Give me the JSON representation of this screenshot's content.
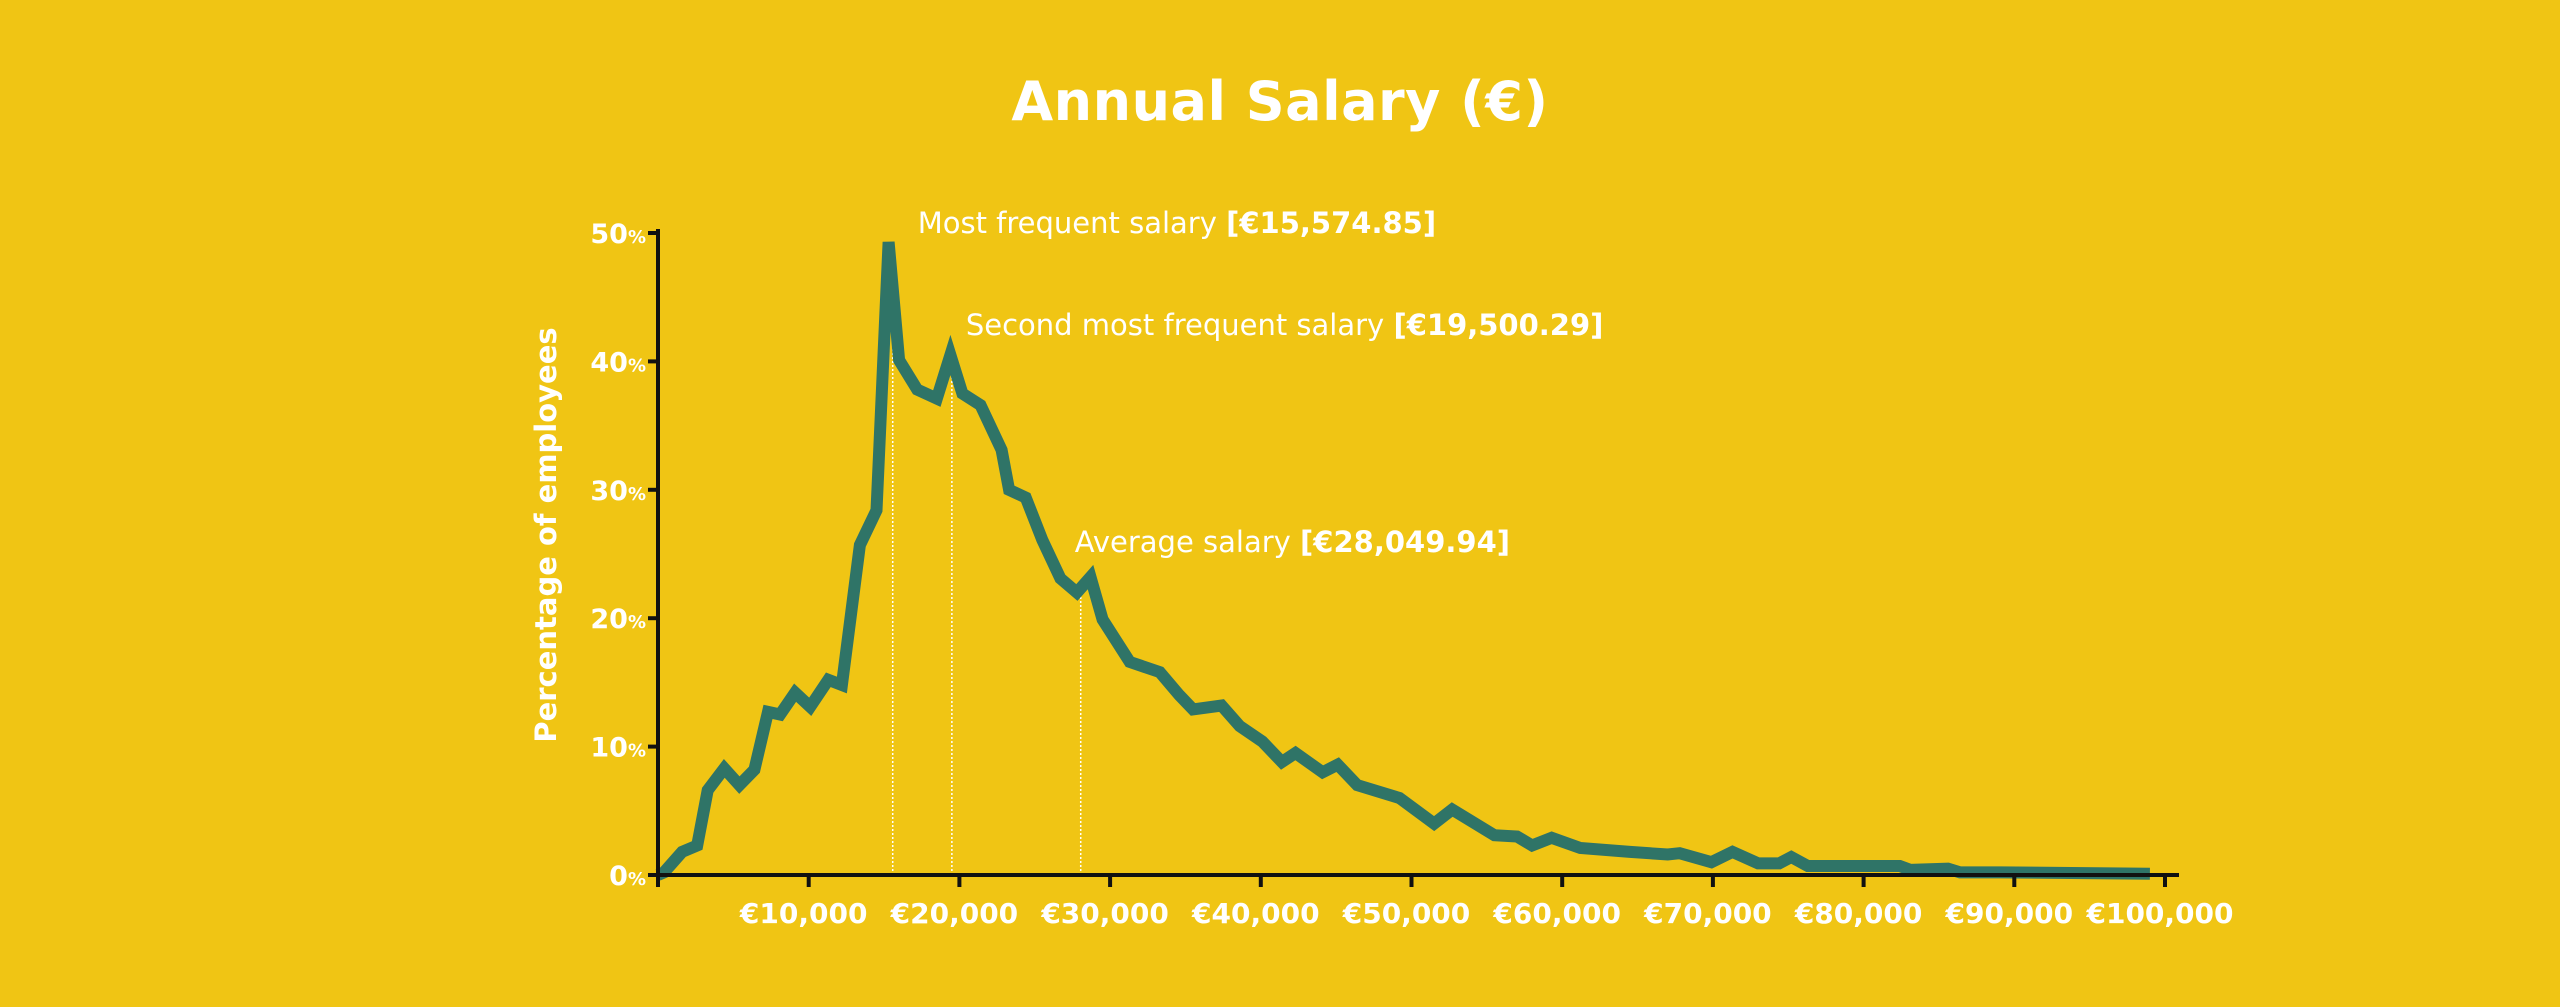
{
  "colors": {
    "background": "#F0C514",
    "line": "#2F7467",
    "axis": "#111111",
    "text": "#ffffff"
  },
  "chart_data": {
    "type": "line",
    "title": "Annual Salary (€)",
    "xlabel": "",
    "ylabel": "Percentage of employees",
    "xlim": [
      0,
      100000
    ],
    "ylim": [
      0,
      50
    ],
    "grid": false,
    "legend": "none",
    "x_ticks": [
      {
        "value": 10000,
        "label": "€10,000"
      },
      {
        "value": 20000,
        "label": "€20,000"
      },
      {
        "value": 30000,
        "label": "€30,000"
      },
      {
        "value": 40000,
        "label": "€40,000"
      },
      {
        "value": 50000,
        "label": "€50,000"
      },
      {
        "value": 60000,
        "label": "€60,000"
      },
      {
        "value": 70000,
        "label": "€70,000"
      },
      {
        "value": 80000,
        "label": "€80,000"
      },
      {
        "value": 90000,
        "label": "€90,000"
      },
      {
        "value": 100000,
        "label": "€100,000"
      }
    ],
    "y_ticks": [
      {
        "value": 0,
        "label": "0",
        "suffix": "%"
      },
      {
        "value": 10,
        "label": "10",
        "suffix": "%"
      },
      {
        "value": 20,
        "label": "20",
        "suffix": "%"
      },
      {
        "value": 30,
        "label": "30",
        "suffix": "%"
      },
      {
        "value": 40,
        "label": "40",
        "suffix": "%"
      },
      {
        "value": 50,
        "label": "50",
        "suffix": "%"
      }
    ],
    "series": [
      {
        "name": "Percentage of employees",
        "x": [
          400,
          1600,
          2600,
          3300,
          4400,
          5400,
          6400,
          7300,
          8100,
          9100,
          10100,
          11300,
          12200,
          13400,
          14500,
          15300,
          16000,
          17200,
          18500,
          19400,
          20200,
          21400,
          22800,
          23300,
          24400,
          25500,
          26700,
          27800,
          28700,
          29500,
          31300,
          33300,
          34600,
          35500,
          37400,
          38600,
          40100,
          41400,
          42300,
          44100,
          45100,
          46400,
          49200,
          51500,
          52700,
          55500,
          57000,
          58000,
          59300,
          61200,
          64500,
          67000,
          67800,
          69900,
          71300,
          73000,
          74400,
          75200,
          76300,
          82400,
          83100,
          85600,
          86400,
          89100,
          99000
        ],
        "y": [
          0.2,
          1.8,
          2.3,
          6.6,
          8.3,
          7.0,
          8.2,
          12.7,
          12.5,
          14.2,
          13.1,
          15.2,
          14.8,
          25.7,
          28.4,
          49.3,
          40.1,
          37.8,
          37.1,
          40.5,
          37.5,
          36.6,
          33.1,
          30.0,
          29.4,
          26.1,
          23.1,
          22.0,
          23.2,
          19.9,
          16.6,
          15.8,
          14.0,
          12.9,
          13.2,
          11.6,
          10.4,
          8.8,
          9.5,
          8.0,
          8.6,
          7.0,
          6.0,
          4.0,
          5.1,
          3.1,
          3.0,
          2.3,
          2.9,
          2.1,
          1.8,
          1.6,
          1.7,
          1.0,
          1.8,
          0.9,
          0.9,
          1.4,
          0.7,
          0.7,
          0.4,
          0.5,
          0.2,
          0.2,
          0.1
        ]
      }
    ],
    "annotations": [
      {
        "x": 15574.85,
        "y": 49.3,
        "text": "Most frequent salary ",
        "value_text": "[€15,574.85]"
      },
      {
        "x": 19500.29,
        "y": 40.5,
        "text": "Second most frequent salary ",
        "value_text": "[€19,500.29]"
      },
      {
        "x": 28049.94,
        "y": 23.2,
        "text": "Average salary ",
        "value_text": "[€28,049.94]"
      }
    ]
  }
}
